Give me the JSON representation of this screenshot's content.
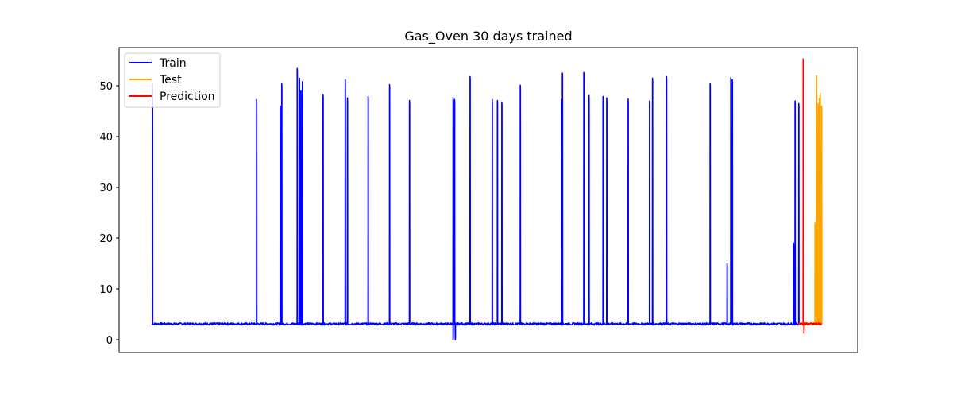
{
  "chart_data": {
    "type": "line",
    "title": "Gas_Oven 30 days trained",
    "xlabel": "",
    "ylabel": "",
    "xlim": [
      0,
      1000
    ],
    "ylim": [
      -2.5,
      57.5
    ],
    "y_ticks": [
      0,
      10,
      20,
      30,
      40,
      50
    ],
    "x_ticks_shown": false,
    "grid": false,
    "legend_position": "top-left",
    "baseline": 3.1,
    "series": [
      {
        "name": "Train",
        "color": "#0000ff",
        "x_range": [
          45,
          920
        ],
        "baseline": 3.1,
        "spikes": [
          {
            "x": 45,
            "peak": 50.5
          },
          {
            "x": 186,
            "peak": 47.3
          },
          {
            "x": 218,
            "peak": 46
          },
          {
            "x": 220,
            "peak": 50.5
          },
          {
            "x": 241,
            "peak": 53.4
          },
          {
            "x": 244,
            "peak": 51.5
          },
          {
            "x": 246,
            "peak": 49
          },
          {
            "x": 248,
            "peak": 50.8
          },
          {
            "x": 276,
            "peak": 48.2
          },
          {
            "x": 306,
            "peak": 51.2
          },
          {
            "x": 309,
            "peak": 47.6
          },
          {
            "x": 337,
            "peak": 47.9
          },
          {
            "x": 366,
            "peak": 50.2
          },
          {
            "x": 393,
            "peak": 47.1
          },
          {
            "x": 452,
            "peak": 47.7
          },
          {
            "x": 454,
            "peak": 47.3
          },
          {
            "x": 475,
            "peak": 51.8
          },
          {
            "x": 505,
            "peak": 47.3
          },
          {
            "x": 512,
            "peak": 47.1
          },
          {
            "x": 518,
            "peak": 46.8
          },
          {
            "x": 543,
            "peak": 50.1
          },
          {
            "x": 600,
            "peak": 52.5
          },
          {
            "x": 599,
            "peak": 47.3
          },
          {
            "x": 629,
            "peak": 52.6
          },
          {
            "x": 636,
            "peak": 48.1
          },
          {
            "x": 655,
            "peak": 47.9
          },
          {
            "x": 660,
            "peak": 47.6
          },
          {
            "x": 689,
            "peak": 47.4
          },
          {
            "x": 718,
            "peak": 47
          },
          {
            "x": 722,
            "peak": 51.5
          },
          {
            "x": 741,
            "peak": 51.8
          },
          {
            "x": 800,
            "peak": 50.5
          },
          {
            "x": 823,
            "peak": 15
          },
          {
            "x": 828,
            "peak": 51.6
          },
          {
            "x": 830,
            "peak": 51.2
          },
          {
            "x": 913,
            "peak": 19
          },
          {
            "x": 915,
            "peak": 47
          },
          {
            "x": 920,
            "peak": 46.5
          }
        ],
        "dips": [
          {
            "x": 452,
            "low": 0
          },
          {
            "x": 455,
            "low": 0
          }
        ]
      },
      {
        "name": "Test",
        "color": "#ffa500",
        "x_range": [
          920,
          951
        ],
        "baseline": 3.1,
        "spikes": [
          {
            "x": 942,
            "peak": 23
          },
          {
            "x": 944,
            "peak": 52
          },
          {
            "x": 946,
            "peak": 46.5
          },
          {
            "x": 948,
            "peak": 47.5
          },
          {
            "x": 949,
            "peak": 48.5
          },
          {
            "x": 951,
            "peak": 46
          }
        ]
      },
      {
        "name": "Prediction",
        "color": "#ff0000",
        "x_range": [
          920,
          951
        ],
        "baseline": 3.1,
        "spikes": [
          {
            "x": 926,
            "peak": 55.3
          }
        ],
        "dips": [
          {
            "x": 927,
            "low": 1.3
          }
        ]
      }
    ]
  }
}
